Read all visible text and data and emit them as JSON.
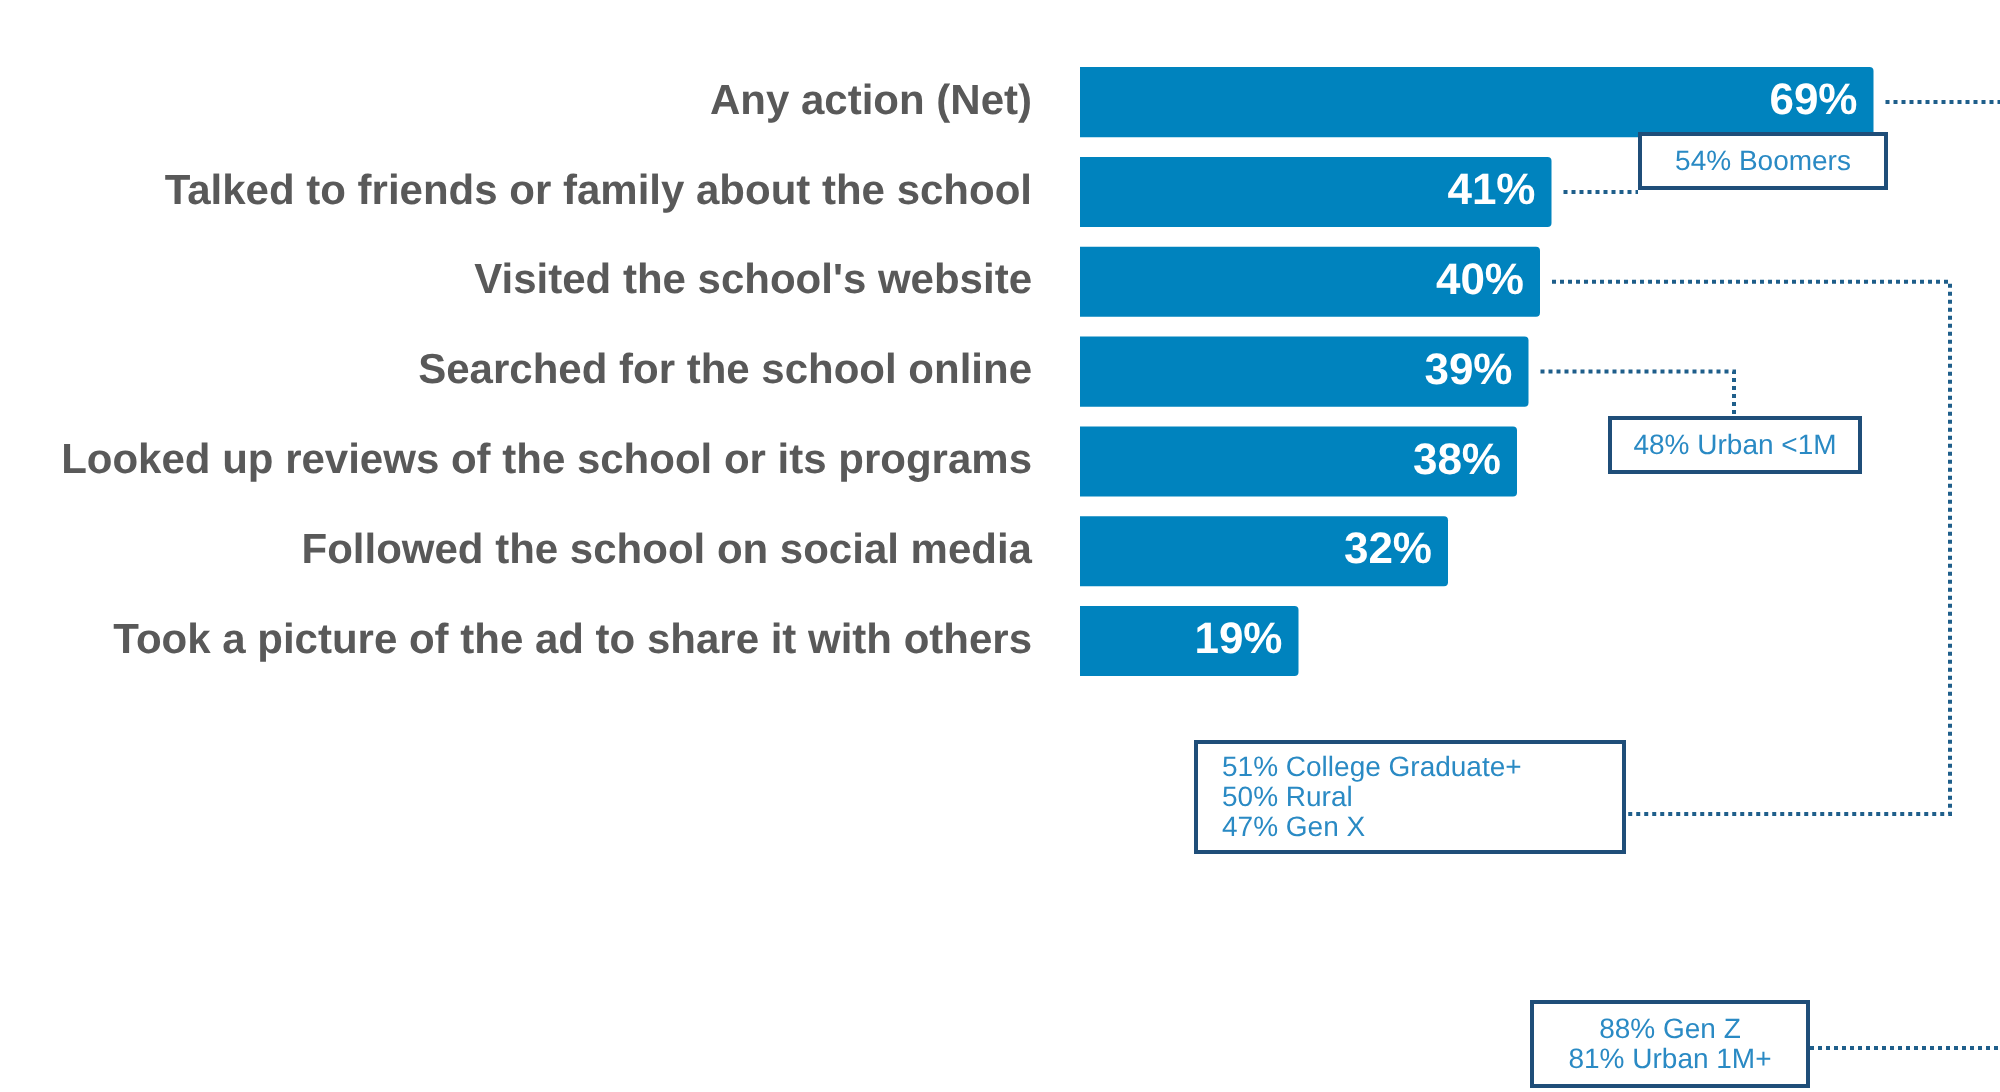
{
  "chart_data": {
    "type": "bar",
    "orientation": "horizontal",
    "categories": [
      "Any action (Net)",
      "Talked to friends or family about the school",
      "Visited the school's website",
      "Searched for the school online",
      "Looked up reviews of the school or its programs",
      "Followed the school on social media",
      "Took a picture of the ad to share it with others"
    ],
    "values": [
      69,
      41,
      40,
      39,
      38,
      32,
      19
    ],
    "value_labels": [
      "69%",
      "41%",
      "40%",
      "39%",
      "38%",
      "32%",
      "19%"
    ],
    "color": "#0083be",
    "xlim": [
      0,
      80
    ],
    "annotations": [
      "54% Boomers",
      "48% Urban <1M",
      "51% College Graduate+\n50% Rural\n47% Gen X",
      "88% Gen Z\n81% Urban 1M+"
    ]
  }
}
